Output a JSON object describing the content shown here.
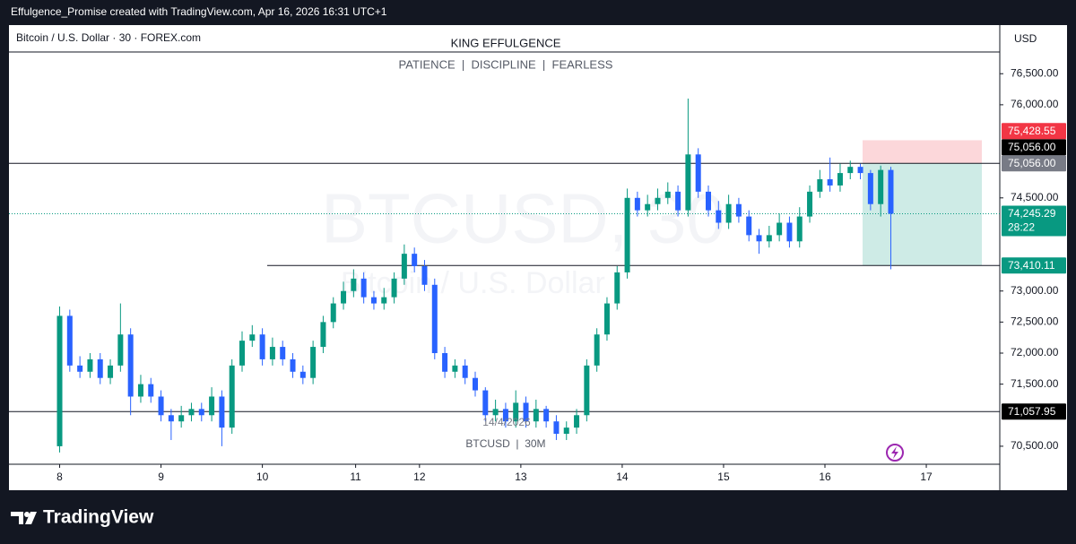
{
  "header": {
    "caption": "Effulgence_Promise created with TradingView.com, Apr 16, 2026 16:31 UTC+1",
    "symbol": "Bitcoin / U.S. Dollar · 30 · FOREX.com",
    "currency": "USD",
    "footer": "TradingView"
  },
  "chart_data": {
    "type": "candlestick",
    "title": "KING EFFULGENCE",
    "subtitle": "PATIENCE  |  DISCIPLINE  |  FEARLESS",
    "watermark": [
      "BTCUSD, 30",
      "Bitcoin / U.S. Dollar"
    ],
    "annotations": [
      "14/4/2026",
      "BTCUSD  |  30M"
    ],
    "up_color": "#089981",
    "down_color": "#2962ff",
    "x": [
      0,
      2,
      4,
      6,
      8,
      10,
      12,
      14,
      16,
      18,
      20,
      22,
      24,
      26,
      28,
      30,
      32,
      34,
      36,
      38,
      40,
      42,
      44,
      46,
      48,
      50,
      52,
      54,
      56,
      58,
      60,
      62,
      64,
      66,
      68,
      70,
      72,
      74,
      76,
      78,
      80,
      82,
      84,
      86,
      88,
      90,
      92,
      94,
      96,
      98,
      100,
      102,
      104,
      106,
      108,
      110,
      112,
      114,
      116,
      118,
      120,
      122,
      124,
      126,
      128,
      130,
      132,
      134,
      136,
      138,
      140,
      142,
      144,
      146,
      148,
      150,
      152,
      154,
      156,
      158,
      160,
      162,
      164
    ],
    "open": [
      70500,
      72600,
      71800,
      71700,
      71900,
      71600,
      71800,
      72300,
      71300,
      71500,
      71300,
      71000,
      70900,
      71000,
      71100,
      71000,
      71300,
      70800,
      71800,
      72200,
      72300,
      71900,
      72100,
      71900,
      71700,
      71600,
      72100,
      72500,
      72800,
      73000,
      73200,
      72900,
      72800,
      72900,
      73200,
      73600,
      73400,
      73100,
      72000,
      71700,
      71800,
      71600,
      71400,
      71000,
      71100,
      70900,
      71200,
      70900,
      71100,
      70900,
      70700,
      70800,
      71000,
      71800,
      72300,
      72800,
      73300,
      74500,
      74300,
      74400,
      74500,
      74600,
      74300,
      75200,
      74600,
      74300,
      74100,
      74400,
      74200,
      73900,
      73800,
      73900,
      74100,
      73800,
      74200,
      74600,
      74800,
      74700,
      74900,
      75000,
      74900,
      74400,
      74950
    ],
    "high": [
      72750,
      72700,
      71950,
      72000,
      72000,
      71900,
      72800,
      72400,
      71650,
      71600,
      71400,
      71100,
      71150,
      71200,
      71200,
      71450,
      71400,
      71900,
      72350,
      72450,
      72400,
      72250,
      72200,
      72000,
      71800,
      72200,
      72600,
      72900,
      73150,
      73350,
      73300,
      73000,
      73050,
      73300,
      73750,
      73700,
      73500,
      73200,
      72100,
      71900,
      71900,
      71700,
      71450,
      71250,
      71200,
      71400,
      71300,
      71250,
      71150,
      71000,
      70900,
      71100,
      71900,
      72400,
      72900,
      73400,
      74650,
      74600,
      74550,
      74650,
      74750,
      74700,
      76100,
      75300,
      74700,
      74450,
      74550,
      74500,
      74300,
      74000,
      74050,
      74250,
      74200,
      74350,
      74700,
      74950,
      75150,
      75050,
      75100,
      75050,
      74950,
      75020,
      75000
    ],
    "low": [
      70400,
      71700,
      71600,
      71600,
      71500,
      71500,
      71700,
      71000,
      71200,
      71200,
      70900,
      70600,
      70800,
      70900,
      70900,
      70900,
      70500,
      70700,
      71700,
      72100,
      71800,
      71800,
      71800,
      71600,
      71500,
      71500,
      72000,
      72400,
      72700,
      72900,
      72800,
      72700,
      72700,
      72800,
      73100,
      73300,
      73000,
      71900,
      71600,
      71600,
      71500,
      71300,
      70900,
      70900,
      70800,
      70800,
      70800,
      70800,
      70800,
      70600,
      70600,
      70700,
      70900,
      71700,
      72200,
      72700,
      73200,
      74200,
      74200,
      74300,
      74400,
      74200,
      74200,
      74500,
      74200,
      74000,
      74000,
      74100,
      73800,
      73600,
      73700,
      73800,
      73700,
      73700,
      74100,
      74500,
      74600,
      74600,
      74800,
      74800,
      74300,
      74200,
      73350
    ],
    "close": [
      72600,
      71800,
      71700,
      71900,
      71600,
      71800,
      72300,
      71300,
      71500,
      71300,
      71000,
      70900,
      71000,
      71100,
      71000,
      71300,
      70800,
      71800,
      72200,
      72300,
      71900,
      72100,
      71900,
      71700,
      71600,
      72100,
      72500,
      72800,
      73000,
      73200,
      72900,
      72800,
      72900,
      73200,
      73600,
      73400,
      73100,
      72000,
      71700,
      71800,
      71600,
      71400,
      71000,
      71100,
      70900,
      71200,
      70900,
      71100,
      70900,
      70700,
      70800,
      71000,
      71800,
      72300,
      72800,
      73300,
      74500,
      74300,
      74400,
      74500,
      74600,
      74300,
      75200,
      74600,
      74300,
      74100,
      74400,
      74200,
      73900,
      73800,
      73900,
      74100,
      73800,
      74200,
      74600,
      74800,
      74700,
      74900,
      75000,
      74900,
      74400,
      74950,
      74245.29
    ],
    "xlim": [
      -10,
      185.5
    ],
    "xticks": [
      {
        "value": 0,
        "label": "8"
      },
      {
        "value": 20,
        "label": "9"
      },
      {
        "value": 40,
        "label": "10"
      },
      {
        "value": 58.4,
        "label": "11"
      },
      {
        "value": 71,
        "label": "12"
      },
      {
        "value": 91,
        "label": "13"
      },
      {
        "value": 111,
        "label": "14"
      },
      {
        "value": 131,
        "label": "15"
      },
      {
        "value": 151,
        "label": "16"
      },
      {
        "value": 171,
        "label": "17"
      }
    ],
    "ylim": [
      70210,
      76850
    ],
    "yticks": [
      {
        "value": 70500,
        "label": "70,500.00"
      },
      {
        "value": 71500,
        "label": "71,500.00"
      },
      {
        "value": 72000,
        "label": "72,000.00"
      },
      {
        "value": 72500,
        "label": "72,500.00"
      },
      {
        "value": 73000,
        "label": "73,000.00"
      },
      {
        "value": 74500,
        "label": "74,500.00"
      },
      {
        "value": 76000,
        "label": "76,000.00"
      },
      {
        "value": 76500,
        "label": "76,500.00"
      }
    ],
    "grid": false,
    "levels": [
      {
        "value": 75428.55,
        "label": "75,428.55",
        "color": "#f23645"
      },
      {
        "value": 75056,
        "label": "75,056.00",
        "color": "#000000",
        "line_style": "solid"
      },
      {
        "value": 75056,
        "label": "75,056.00",
        "color": "#787b86"
      },
      {
        "value": 74245.29,
        "label": "74,245.29",
        "color": "#089981",
        "countdown": "28:22",
        "line_style": "dotted"
      },
      {
        "value": 73410.11,
        "label": "73,410.11",
        "color": "#089981",
        "line_style": "solid"
      },
      {
        "value": 71057.95,
        "label": "71,057.95",
        "color": "#000000",
        "line_style": "solid"
      }
    ]
  }
}
